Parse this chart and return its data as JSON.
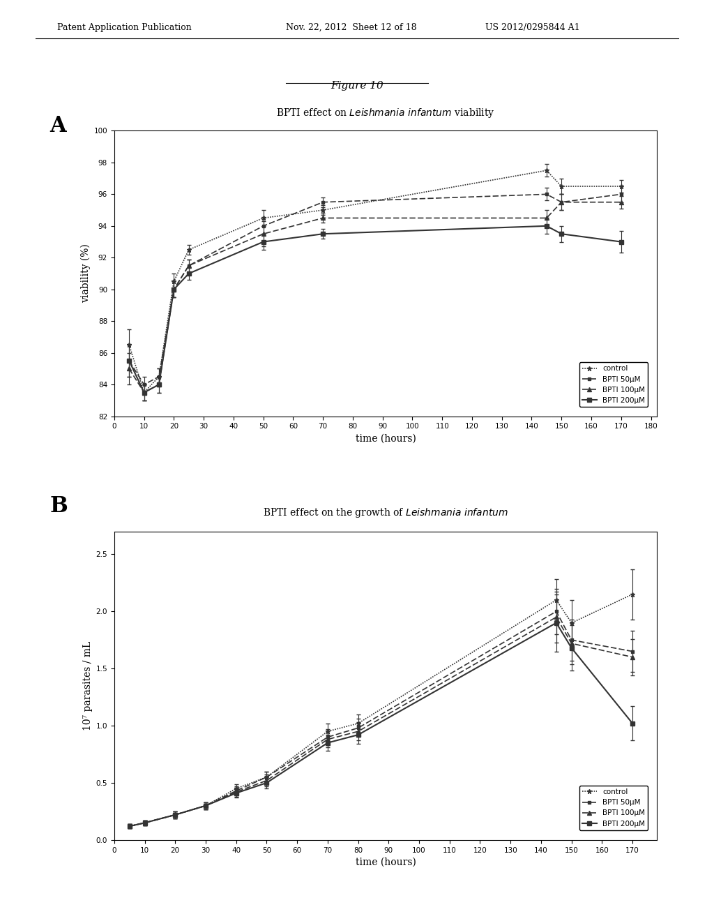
{
  "header_left": "Patent Application Publication",
  "header_mid": "Nov. 22, 2012  Sheet 12 of 18",
  "header_right": "US 2012/0295844 A1",
  "figure_label": "Figure 10",
  "panel_A_label": "A",
  "panel_B_label": "B",
  "chartA_title_plain": "BPTI effect on ",
  "chartA_title_italic": "Leishmania infantum",
  "chartA_title_end": " viability",
  "chartA_xlabel": "time (hours)",
  "chartA_ylabel": "viability (%)",
  "chartA_xlim": [
    0,
    182
  ],
  "chartA_ylim": [
    82,
    100
  ],
  "chartA_yticks": [
    82,
    84,
    86,
    88,
    90,
    92,
    94,
    96,
    98,
    100
  ],
  "chartA_xticks": [
    0,
    10,
    20,
    30,
    40,
    50,
    60,
    70,
    80,
    90,
    100,
    110,
    120,
    130,
    140,
    150,
    160,
    170,
    180
  ],
  "chartA_time": [
    5,
    10,
    15,
    20,
    25,
    50,
    70,
    145,
    150,
    170
  ],
  "chartA_control": [
    86.5,
    83.5,
    84.5,
    90.5,
    92.5,
    94.5,
    95.0,
    97.5,
    96.5,
    96.5
  ],
  "chartA_control_err": [
    1.0,
    0.5,
    0.5,
    0.5,
    0.3,
    0.5,
    0.3,
    0.4,
    0.5,
    0.4
  ],
  "chartA_50uM": [
    85.5,
    84.0,
    84.5,
    90.0,
    91.5,
    94.0,
    95.5,
    96.0,
    95.5,
    96.0
  ],
  "chartA_50uM_err": [
    1.0,
    0.5,
    0.5,
    0.5,
    0.4,
    0.5,
    0.3,
    0.4,
    0.5,
    0.5
  ],
  "chartA_100uM": [
    85.0,
    83.5,
    84.0,
    90.0,
    91.5,
    93.5,
    94.5,
    94.5,
    95.5,
    95.5
  ],
  "chartA_100uM_err": [
    1.0,
    0.5,
    0.5,
    0.5,
    0.4,
    0.8,
    0.3,
    0.5,
    0.5,
    0.4
  ],
  "chartA_200uM": [
    85.5,
    83.5,
    84.0,
    90.0,
    91.0,
    93.0,
    93.5,
    94.0,
    93.5,
    93.0
  ],
  "chartA_200uM_err": [
    1.0,
    0.5,
    0.5,
    0.5,
    0.4,
    0.5,
    0.3,
    0.5,
    0.5,
    0.7
  ],
  "chartB_title_plain": "BPTI effect on the growth of ",
  "chartB_title_italic": "Leishmania infantum",
  "chartB_xlabel": "time (hours)",
  "chartB_ylabel": "10⁷ parasites / mL",
  "chartB_xlim": [
    0,
    178
  ],
  "chartB_ylim": [
    0,
    2.7
  ],
  "chartB_yticks": [
    0,
    0.5,
    1.0,
    1.5,
    2.0,
    2.5
  ],
  "chartB_xticks": [
    0,
    10,
    20,
    30,
    40,
    50,
    60,
    70,
    80,
    90,
    100,
    110,
    120,
    130,
    140,
    150,
    160,
    170
  ],
  "chartB_time": [
    5,
    10,
    20,
    30,
    40,
    50,
    70,
    80,
    145,
    150,
    170
  ],
  "chartB_control": [
    0.12,
    0.15,
    0.22,
    0.3,
    0.45,
    0.55,
    0.95,
    1.02,
    2.1,
    1.9,
    2.15
  ],
  "chartB_control_err": [
    0.02,
    0.02,
    0.03,
    0.03,
    0.04,
    0.05,
    0.07,
    0.08,
    0.18,
    0.2,
    0.22
  ],
  "chartB_50uM": [
    0.12,
    0.15,
    0.22,
    0.3,
    0.43,
    0.55,
    0.9,
    0.98,
    2.0,
    1.75,
    1.65
  ],
  "chartB_50uM_err": [
    0.02,
    0.02,
    0.03,
    0.03,
    0.04,
    0.05,
    0.07,
    0.08,
    0.2,
    0.18,
    0.18
  ],
  "chartB_100uM": [
    0.12,
    0.15,
    0.22,
    0.3,
    0.42,
    0.52,
    0.88,
    0.95,
    1.95,
    1.72,
    1.6
  ],
  "chartB_100uM_err": [
    0.02,
    0.02,
    0.03,
    0.03,
    0.04,
    0.05,
    0.07,
    0.08,
    0.22,
    0.18,
    0.16
  ],
  "chartB_200uM": [
    0.12,
    0.15,
    0.22,
    0.3,
    0.41,
    0.5,
    0.85,
    0.92,
    1.9,
    1.68,
    1.02
  ],
  "chartB_200uM_err": [
    0.02,
    0.02,
    0.03,
    0.03,
    0.04,
    0.05,
    0.07,
    0.08,
    0.25,
    0.2,
    0.15
  ],
  "bg_color": "#ffffff",
  "color_control": "#333333",
  "color_50uM": "#333333",
  "color_100uM": "#333333",
  "color_200uM": "#333333",
  "legend_control": "control",
  "legend_50uM": "BPTI 50μM",
  "legend_100uM": "BPTI 100μM",
  "legend_200uM": "BPTI 200μM"
}
